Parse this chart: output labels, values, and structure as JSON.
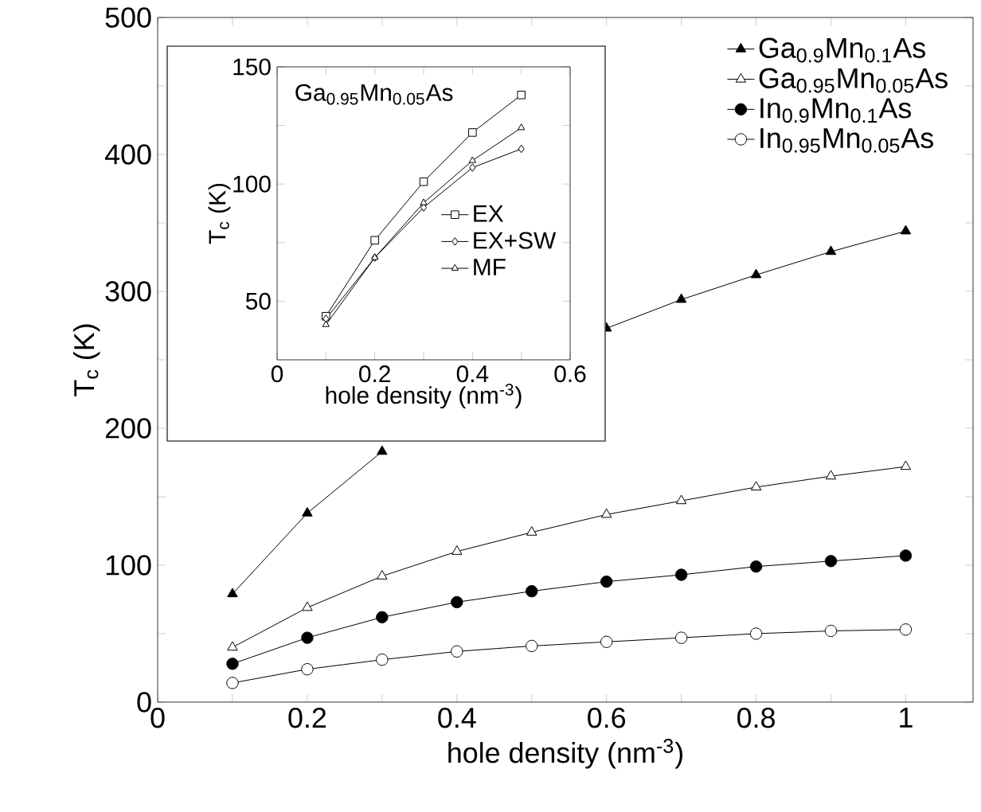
{
  "chart_data": [
    {
      "type": "line",
      "xlabel": "hole density (nm$^{-3}$)",
      "ylabel": "T$_{c}$ (K)",
      "xlim": [
        0,
        1.09
      ],
      "ylim": [
        0,
        500
      ],
      "xticks": [
        0,
        {
          "value": 0.1,
          "label": null
        },
        0.2,
        {
          "value": 0.3,
          "label": null
        },
        0.4,
        {
          "value": 0.5,
          "label": null
        },
        0.6,
        {
          "value": 0.7,
          "label": null
        },
        0.8,
        {
          "value": 0.9,
          "label": null
        },
        1
      ],
      "yticks": [
        0,
        {
          "value": 50,
          "label": null
        },
        100,
        {
          "value": 150,
          "label": null
        },
        200,
        {
          "value": 250,
          "label": null
        },
        300,
        {
          "value": 350,
          "label": null
        },
        400,
        {
          "value": 450,
          "label": null
        },
        500
      ],
      "legend": "top right",
      "line_style": "solid",
      "x": [
        0.1,
        0.2,
        0.3,
        0.4,
        0.5,
        0.6,
        0.7,
        0.8,
        0.9,
        1.0
      ],
      "series": [
        {
          "name": "Ga$_{0.9}$Mn$_{0.1}$As",
          "color": "#000000",
          "marker": "triangle",
          "values": [
            79,
            138,
            183,
            null,
            null,
            273,
            294,
            312,
            329,
            344
          ]
        },
        {
          "name": "Ga$_{0.95}$Mn$_{0.05}$As",
          "color": "#ffffff",
          "marker": "triangle",
          "values": [
            40,
            69,
            92,
            110,
            124,
            137,
            147,
            157,
            165,
            172
          ]
        },
        {
          "name": "In$_{0.9}$Mn$_{0.1}$As",
          "color": "#000000",
          "marker": "circle",
          "values": [
            28,
            47,
            62,
            73,
            81,
            88,
            93,
            99,
            103,
            107
          ]
        },
        {
          "name": "In$_{0.95}$Mn$_{0.05}$As",
          "color": "#ffffff",
          "marker": "circle",
          "values": [
            14,
            24,
            31,
            37,
            41,
            44,
            47,
            50,
            52,
            53
          ]
        }
      ]
    },
    {
      "type": "line",
      "xlabel": "hole density (nm$^{-3}$)",
      "ylabel": "T$_{c}$ (K)",
      "xlim": [
        0,
        0.6
      ],
      "ylim": [
        25,
        150
      ],
      "xticks": [
        0,
        {
          "value": 0.1,
          "label": null
        },
        0.2,
        {
          "value": 0.3,
          "label": null
        },
        0.4,
        {
          "value": 0.5,
          "label": null
        },
        0.6
      ],
      "yticks": [
        50,
        {
          "value": 75,
          "label": null
        },
        100,
        {
          "value": 125,
          "label": null
        },
        150
      ],
      "annotations": [
        "Ga$_{0.95}$Mn$_{0.05}$As"
      ],
      "legend": "right",
      "line_style": "solid",
      "x": [
        0.1,
        0.2,
        0.3,
        0.4,
        0.5
      ],
      "series": [
        {
          "name": "EX",
          "color": "#ffffff",
          "marker": "square",
          "values": [
            43.6,
            76,
            101,
            122,
            138
          ]
        },
        {
          "name": "EX+SW",
          "color": "#ffffff",
          "marker": "diamond",
          "values": [
            42.5,
            68.6,
            90,
            107,
            115
          ]
        },
        {
          "name": "MF",
          "color": "#ffffff",
          "marker": "triangle",
          "values": [
            40,
            68.6,
            92,
            110,
            124
          ]
        }
      ]
    }
  ]
}
